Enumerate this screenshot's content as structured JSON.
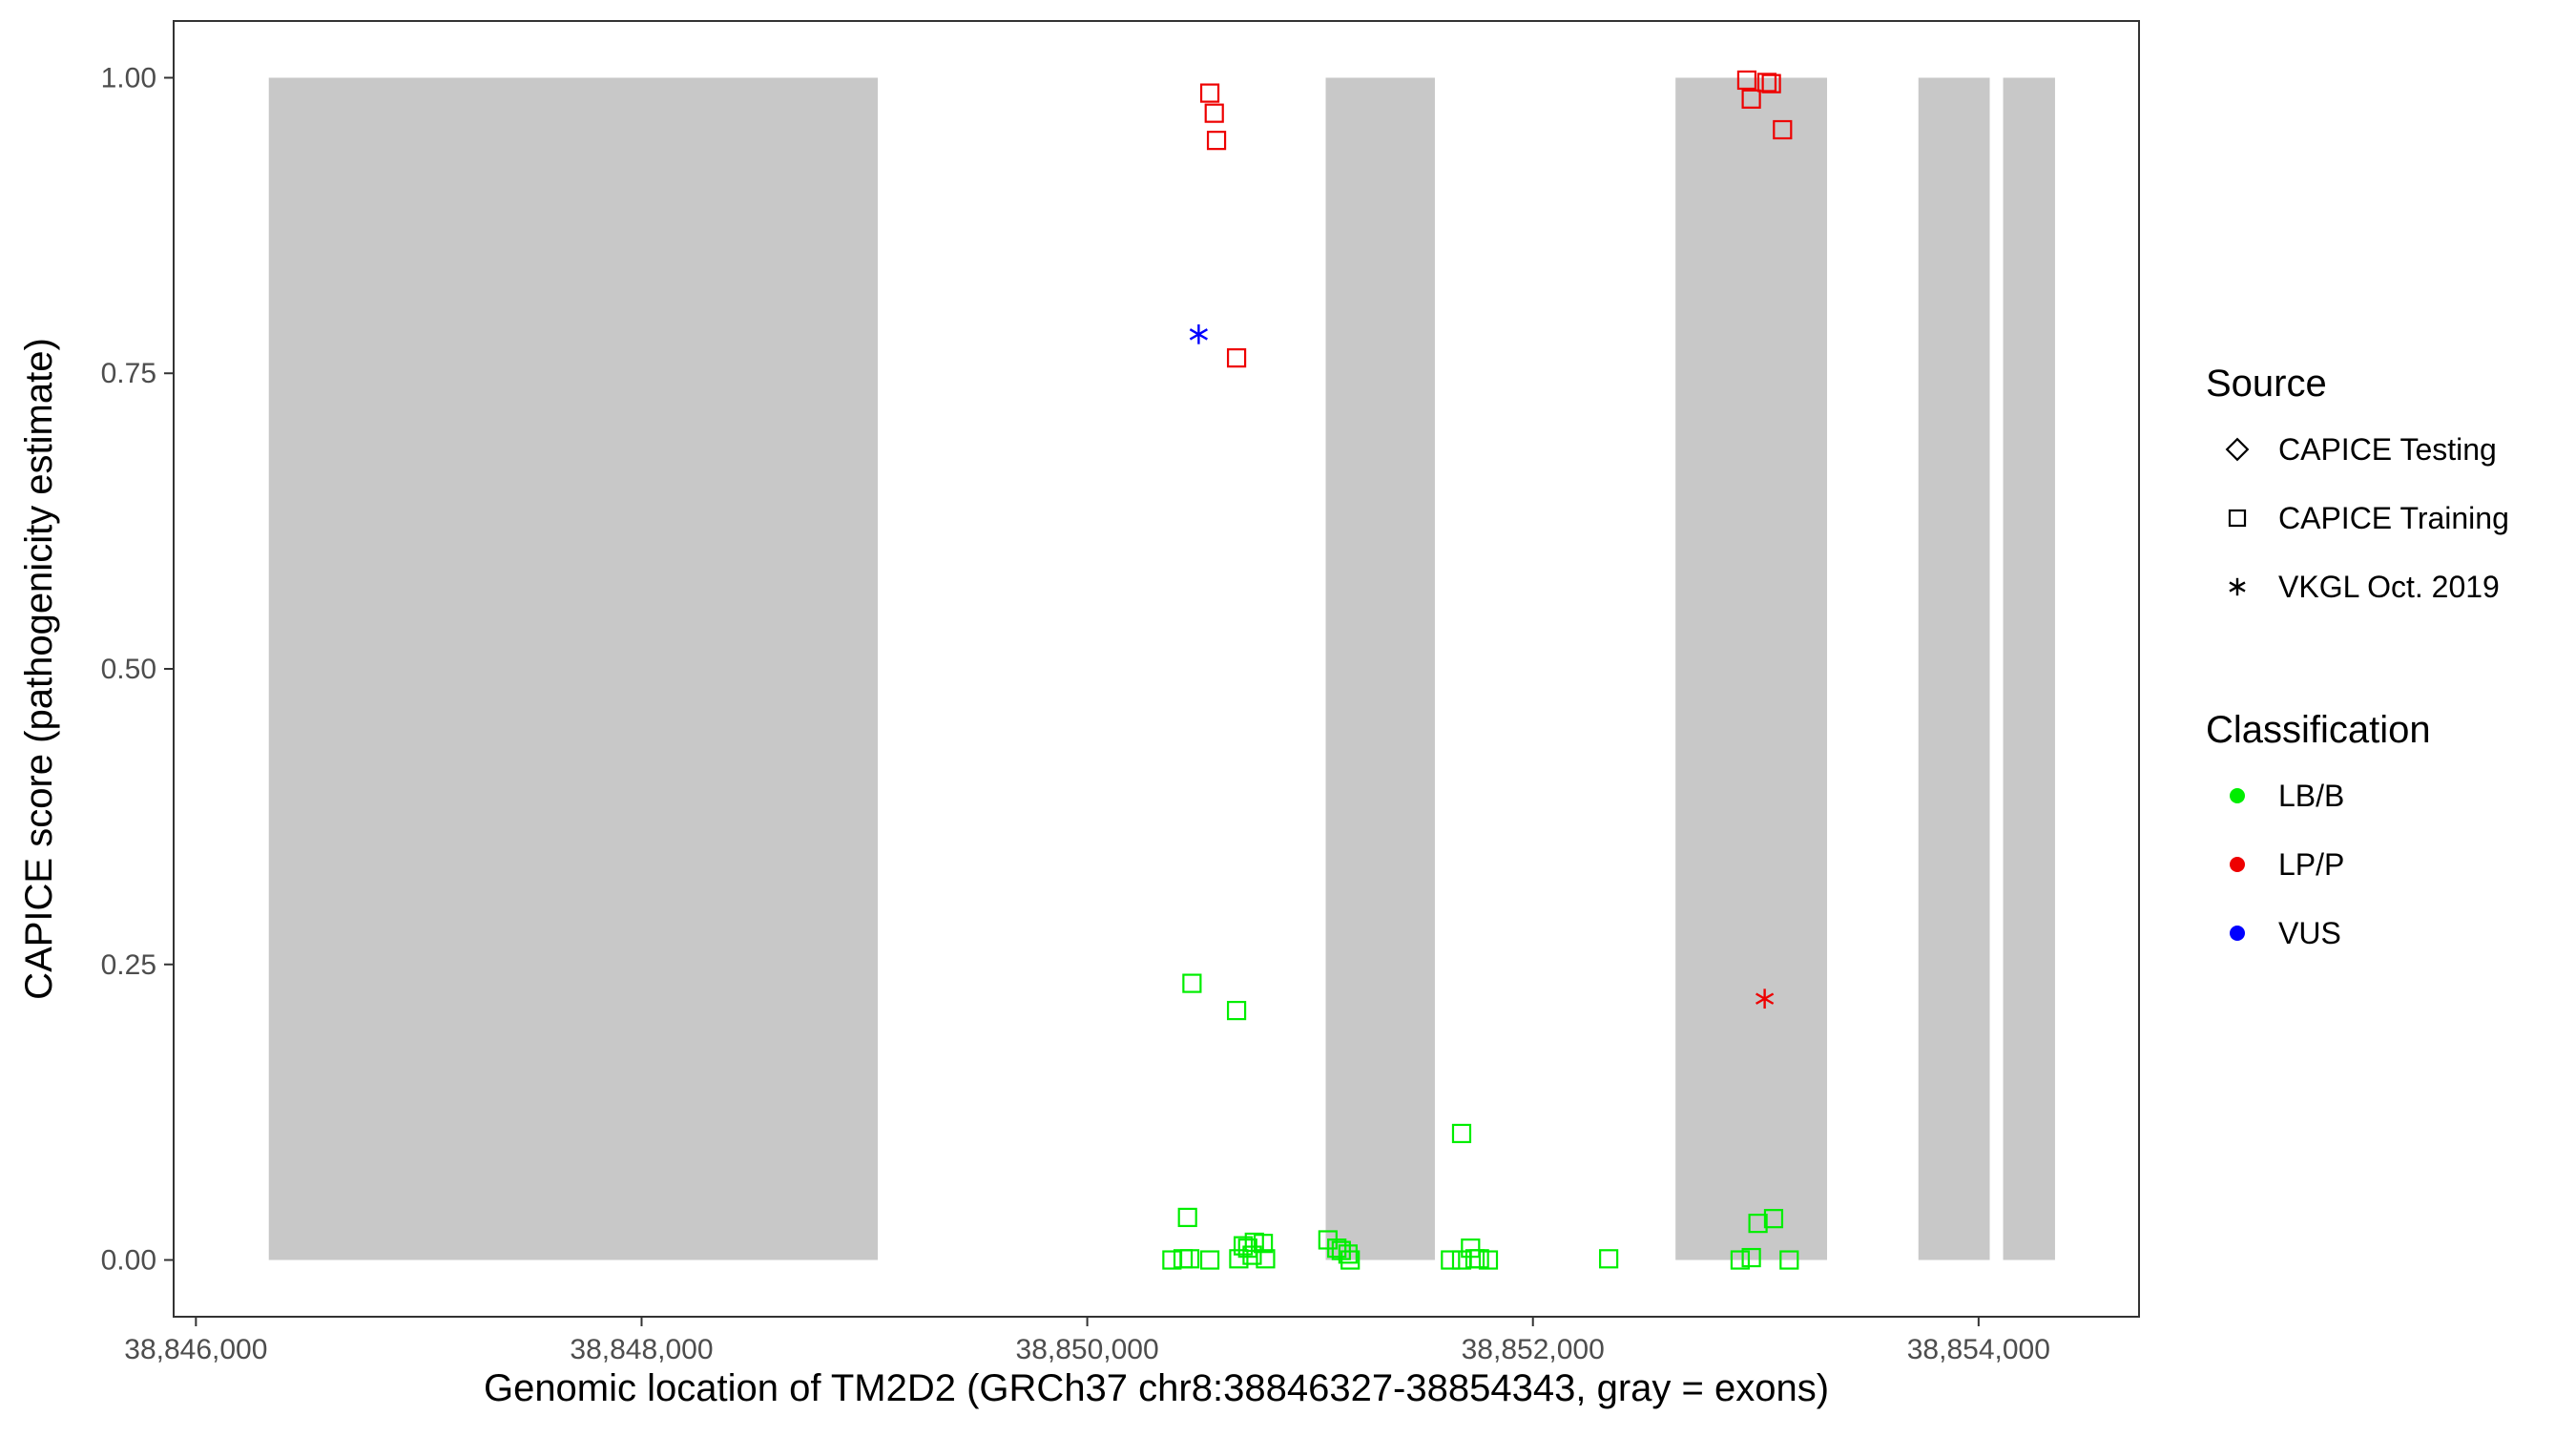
{
  "chart_data": {
    "type": "scatter",
    "title": "",
    "xlabel": "Genomic location of TM2D2 (GRCh37 chr8:38846327-38854343, gray = exons)",
    "ylabel": "CAPICE score (pathogenicity estimate)",
    "xlim": [
      38845900,
      38854720
    ],
    "ylim": [
      -0.048,
      1.048
    ],
    "x_ticks": [
      {
        "value": 38846000,
        "label": "38,846,000"
      },
      {
        "value": 38848000,
        "label": "38,848,000"
      },
      {
        "value": 38850000,
        "label": "38,850,000"
      },
      {
        "value": 38852000,
        "label": "38,852,000"
      },
      {
        "value": 38854000,
        "label": "38,854,000"
      }
    ],
    "y_ticks": [
      {
        "value": 0,
        "label": "0.00"
      },
      {
        "value": 0.25,
        "label": "0.25"
      },
      {
        "value": 0.5,
        "label": "0.50"
      },
      {
        "value": 0.75,
        "label": "0.75"
      },
      {
        "value": 1,
        "label": "1.00"
      }
    ],
    "grid": false,
    "exons": [
      {
        "start": 38846327,
        "end": 38849060
      },
      {
        "start": 38851070,
        "end": 38851560
      },
      {
        "start": 38852640,
        "end": 38853320
      },
      {
        "start": 38853730,
        "end": 38854050
      },
      {
        "start": 38854110,
        "end": 38854343
      }
    ],
    "exon_color": "#c8c8c8",
    "legend": {
      "placement": "right",
      "source": {
        "title": "Source",
        "items": [
          {
            "label": "CAPICE Testing",
            "shape": "diamond"
          },
          {
            "label": "CAPICE Training",
            "shape": "square"
          },
          {
            "label": "VKGL Oct. 2019",
            "shape": "asterisk"
          }
        ]
      },
      "classification": {
        "title": "Classification",
        "items": [
          {
            "label": "LB/B",
            "color": "#00ee00"
          },
          {
            "label": "LP/P",
            "color": "#ee0000"
          },
          {
            "label": "VUS",
            "color": "#0000ff"
          }
        ]
      }
    },
    "series": [
      {
        "source": "CAPICE Training",
        "classification": "LP/P",
        "points": [
          {
            "x": 38850550,
            "y": 0.987
          },
          {
            "x": 38850570,
            "y": 0.97
          },
          {
            "x": 38850580,
            "y": 0.947
          },
          {
            "x": 38850670,
            "y": 0.763
          },
          {
            "x": 38852960,
            "y": 0.998
          },
          {
            "x": 38852980,
            "y": 0.982
          },
          {
            "x": 38853050,
            "y": 0.996
          },
          {
            "x": 38853070,
            "y": 0.995
          },
          {
            "x": 38853120,
            "y": 0.956
          }
        ]
      },
      {
        "source": "CAPICE Training",
        "classification": "LB/B",
        "points": [
          {
            "x": 38850470,
            "y": 0.234
          },
          {
            "x": 38850670,
            "y": 0.211
          },
          {
            "x": 38851680,
            "y": 0.107
          },
          {
            "x": 38850450,
            "y": 0.036
          },
          {
            "x": 38853010,
            "y": 0.031
          },
          {
            "x": 38853080,
            "y": 0.035
          },
          {
            "x": 38850380,
            "y": 0.0
          },
          {
            "x": 38850430,
            "y": 0.001
          },
          {
            "x": 38850460,
            "y": 0.001
          },
          {
            "x": 38850550,
            "y": 0.0
          },
          {
            "x": 38850680,
            "y": 0.001
          },
          {
            "x": 38850700,
            "y": 0.012
          },
          {
            "x": 38850720,
            "y": 0.01
          },
          {
            "x": 38850740,
            "y": 0.004
          },
          {
            "x": 38850750,
            "y": 0.015
          },
          {
            "x": 38850790,
            "y": 0.014
          },
          {
            "x": 38850800,
            "y": 0.001
          },
          {
            "x": 38851080,
            "y": 0.017
          },
          {
            "x": 38851120,
            "y": 0.01
          },
          {
            "x": 38851140,
            "y": 0.008
          },
          {
            "x": 38851170,
            "y": 0.005
          },
          {
            "x": 38851180,
            "y": 0.0
          },
          {
            "x": 38851630,
            "y": 0.0
          },
          {
            "x": 38851680,
            "y": 0.0
          },
          {
            "x": 38851720,
            "y": 0.01
          },
          {
            "x": 38851740,
            "y": 0.001
          },
          {
            "x": 38851760,
            "y": 0.001
          },
          {
            "x": 38851800,
            "y": 0.0
          },
          {
            "x": 38852340,
            "y": 0.001
          },
          {
            "x": 38852930,
            "y": 0.0
          },
          {
            "x": 38852980,
            "y": 0.002
          },
          {
            "x": 38853150,
            "y": 0.0
          }
        ]
      },
      {
        "source": "VKGL Oct. 2019",
        "classification": "VUS",
        "points": [
          {
            "x": 38850500,
            "y": 0.783
          }
        ]
      },
      {
        "source": "VKGL Oct. 2019",
        "classification": "LP/P",
        "points": [
          {
            "x": 38853040,
            "y": 0.221
          }
        ]
      }
    ]
  }
}
